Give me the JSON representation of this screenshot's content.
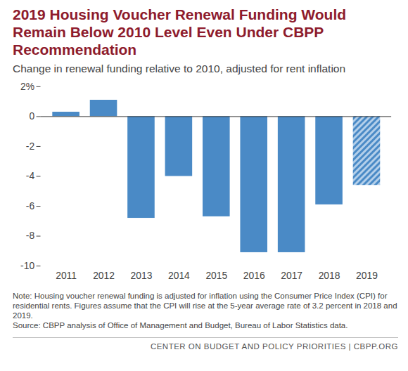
{
  "chart_data": {
    "type": "bar",
    "title": "2019 Housing Voucher Renewal Funding Would Remain Below 2010 Level Even Under CBPP Recommendation",
    "subtitle": "Change in renewal funding relative to 2010, adjusted for rent inflation",
    "categories": [
      "2011",
      "2012",
      "2013",
      "2014",
      "2015",
      "2016",
      "2017",
      "2018",
      "2019"
    ],
    "values": [
      0.3,
      1.1,
      -6.8,
      -4.0,
      -6.7,
      -9.1,
      -9.1,
      -5.9,
      -4.6
    ],
    "color": "#4a8ac6",
    "ylim": [
      -10,
      2
    ],
    "yticks": [
      {
        "value": 2,
        "label": "2%"
      },
      0,
      -2,
      -4,
      -6,
      -8,
      -10
    ],
    "grid": false,
    "note": "Note: Housing voucher renewal funding is adjusted for inflation using the Consumer Price Index (CPI) for residential rents.  Figures assume that the CPI will rise at the 5-year average rate of 3.2 percent in 2018 and 2019.",
    "source": "Source: CBPP analysis of Office of Management and Budget, Bureau of Labor Statistics data.",
    "footer": "CENTER ON BUDGET AND POLICY PRIORITIES | CBPP.ORG"
  }
}
